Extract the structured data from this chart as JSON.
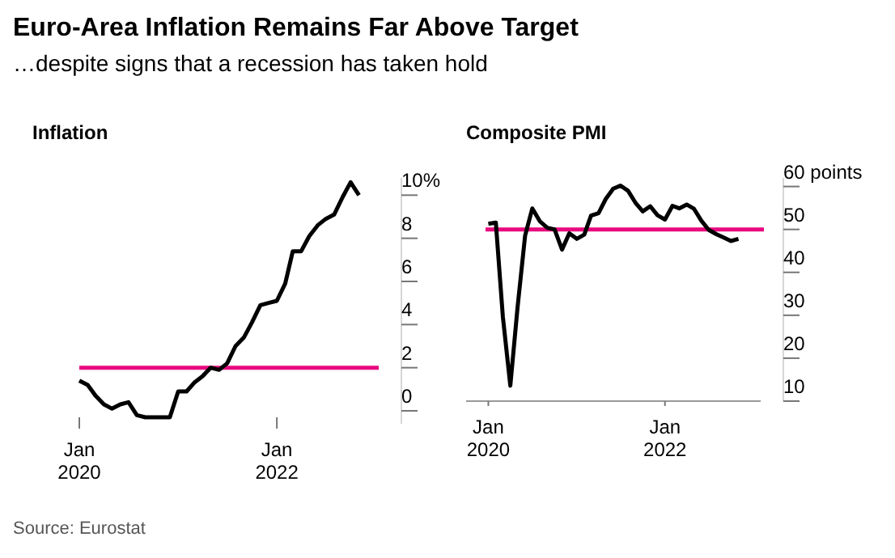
{
  "chart_data": [
    {
      "type": "other",
      "title": "Euro-Area Inflation Remains Far Above Target",
      "subtitle": "…despite signs that a recession has taken hold",
      "annotations": [
        "Source: Eurostat"
      ]
    },
    {
      "type": "line",
      "title": "Inflation",
      "x": [
        "2020-01",
        "2020-02",
        "2020-03",
        "2020-04",
        "2020-05",
        "2020-06",
        "2020-07",
        "2020-08",
        "2020-09",
        "2020-10",
        "2020-11",
        "2020-12",
        "2021-01",
        "2021-02",
        "2021-03",
        "2021-04",
        "2021-05",
        "2021-06",
        "2021-07",
        "2021-08",
        "2021-09",
        "2021-10",
        "2021-11",
        "2021-12",
        "2022-01",
        "2022-02",
        "2022-03",
        "2022-04",
        "2022-05",
        "2022-06",
        "2022-07",
        "2022-08",
        "2022-09",
        "2022-10",
        "2022-11"
      ],
      "series": [
        {
          "color": "#000000",
          "values": [
            1.4,
            1.2,
            0.7,
            0.3,
            0.1,
            0.3,
            0.4,
            -0.2,
            -0.3,
            -0.3,
            -0.3,
            -0.3,
            0.9,
            0.9,
            1.3,
            1.6,
            2.0,
            1.9,
            2.2,
            3.0,
            3.4,
            4.1,
            4.9,
            5.0,
            5.1,
            5.9,
            7.4,
            7.4,
            8.1,
            8.6,
            8.9,
            9.1,
            9.9,
            10.6,
            10.0
          ]
        }
      ],
      "xlim": [
        "2020-01",
        "2023-01"
      ],
      "xticks": [
        {
          "value": "2020-01",
          "label": "Jan\n2020"
        },
        {
          "value": "2022-01",
          "label": "Jan\n2022"
        }
      ],
      "ylim": [
        -0.6,
        10.8
      ],
      "yticks": [
        0,
        2,
        4,
        6,
        8,
        {
          "value": 10,
          "label": "10%"
        }
      ],
      "ref_lines": [
        {
          "axis": "y",
          "value": 2,
          "color": "#e8097f"
        }
      ],
      "grid": false,
      "marker": "none",
      "line_style": "solid"
    },
    {
      "type": "line",
      "title": "Composite PMI",
      "x": [
        "2020-01",
        "2020-02",
        "2020-03",
        "2020-04",
        "2020-05",
        "2020-06",
        "2020-07",
        "2020-08",
        "2020-09",
        "2020-10",
        "2020-11",
        "2020-12",
        "2021-01",
        "2021-02",
        "2021-03",
        "2021-04",
        "2021-05",
        "2021-06",
        "2021-07",
        "2021-08",
        "2021-09",
        "2021-10",
        "2021-11",
        "2021-12",
        "2022-01",
        "2022-02",
        "2022-03",
        "2022-04",
        "2022-05",
        "2022-06",
        "2022-07",
        "2022-08",
        "2022-09",
        "2022-10",
        "2022-11"
      ],
      "series": [
        {
          "color": "#000000",
          "values": [
            51.3,
            51.6,
            29.7,
            13.6,
            31.9,
            48.5,
            54.9,
            51.9,
            50.4,
            50.0,
            45.3,
            49.1,
            47.8,
            48.8,
            53.2,
            53.8,
            57.1,
            59.5,
            60.2,
            59.0,
            56.2,
            54.2,
            55.4,
            53.3,
            52.3,
            55.5,
            54.9,
            55.8,
            54.8,
            52.0,
            49.9,
            48.9,
            48.1,
            47.3,
            47.8
          ]
        }
      ],
      "xlim": [
        "2019-10",
        "2023-02"
      ],
      "xticks": [
        {
          "value": "2020-01",
          "label": "Jan\n2020"
        },
        {
          "value": "2022-01",
          "label": "Jan\n2022"
        }
      ],
      "ylim": [
        10,
        62
      ],
      "yticks": [
        10,
        20,
        30,
        40,
        50,
        {
          "value": 60,
          "label": "60 points"
        }
      ],
      "ref_lines": [
        {
          "axis": "y",
          "value": 50,
          "color": "#e8097f"
        }
      ],
      "grid": false,
      "marker": "none",
      "line_style": "solid"
    }
  ]
}
